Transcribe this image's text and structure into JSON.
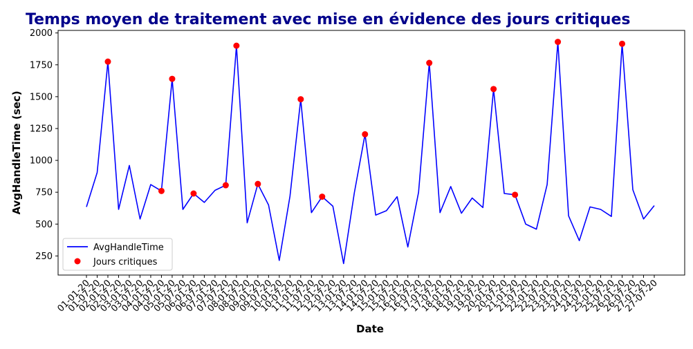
{
  "chart_data": {
    "type": "line",
    "title": "Temps moyen de traitement avec mise en évidence des jours critiques",
    "xlabel": "Date",
    "ylabel": "AvgHandleTime (sec)",
    "ylim": [
      100,
      2020
    ],
    "yticks": [
      250,
      500,
      750,
      1000,
      1250,
      1500,
      1750,
      2000
    ],
    "x": [
      "01-01-20",
      "01-07-20",
      "02-01-20",
      "02-07-20",
      "03-01-20",
      "03-07-20",
      "04-01-20",
      "04-07-20",
      "05-01-20",
      "05-07-20",
      "06-01-20",
      "06-07-20",
      "07-01-20",
      "07-07-20",
      "08-01-20",
      "08-07-20",
      "09-01-20",
      "09-07-20",
      "10-01-20",
      "10-07-20",
      "11-01-20",
      "11-07-20",
      "12-01-20",
      "12-07-20",
      "13-01-20",
      "13-07-20",
      "14-01-20",
      "14-07-20",
      "15-01-20",
      "15-07-20",
      "16-01-20",
      "16-07-20",
      "17-01-20",
      "17-07-20",
      "18-01-20",
      "18-07-20",
      "19-01-20",
      "19-07-20",
      "20-01-20",
      "20-07-20",
      "21-01-20",
      "21-07-20",
      "22-01-20",
      "22-07-20",
      "23-01-20",
      "23-07-20",
      "24-01-20",
      "24-07-20",
      "25-01-20",
      "25-07-20",
      "26-01-20",
      "26-07-20",
      "27-01-20",
      "27-07-20"
    ],
    "series": [
      {
        "name": "AvgHandleTime",
        "color": "#0000ff",
        "values": [
          635,
          905,
          1775,
          615,
          960,
          540,
          810,
          760,
          1640,
          615,
          740,
          670,
          765,
          805,
          1900,
          510,
          815,
          650,
          215,
          720,
          1480,
          590,
          715,
          640,
          190,
          745,
          1205,
          570,
          605,
          715,
          320,
          750,
          1765,
          590,
          795,
          585,
          705,
          630,
          1560,
          740,
          730,
          500,
          460,
          810,
          1930,
          565,
          370,
          635,
          615,
          560,
          1915,
          770,
          540,
          645
        ]
      },
      {
        "name": "Jours critiques",
        "color": "#ff0000",
        "type": "scatter",
        "points": [
          {
            "x": "02-01-20",
            "y": 1775
          },
          {
            "x": "04-07-20",
            "y": 760
          },
          {
            "x": "05-01-20",
            "y": 1640
          },
          {
            "x": "06-01-20",
            "y": 740
          },
          {
            "x": "07-07-20",
            "y": 805
          },
          {
            "x": "08-01-20",
            "y": 1900
          },
          {
            "x": "09-01-20",
            "y": 815
          },
          {
            "x": "11-01-20",
            "y": 1480
          },
          {
            "x": "12-01-20",
            "y": 715
          },
          {
            "x": "14-01-20",
            "y": 1205
          },
          {
            "x": "17-01-20",
            "y": 1765
          },
          {
            "x": "20-01-20",
            "y": 1560
          },
          {
            "x": "21-01-20",
            "y": 730
          },
          {
            "x": "23-01-20",
            "y": 1930
          },
          {
            "x": "26-01-20",
            "y": 1915
          }
        ]
      }
    ],
    "legend": {
      "position": "lower-left",
      "entries": [
        "AvgHandleTime",
        "Jours critiques"
      ]
    },
    "grid": false
  }
}
